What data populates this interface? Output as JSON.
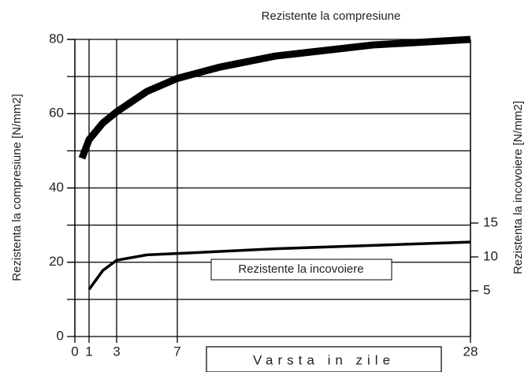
{
  "chart_data": {
    "type": "line",
    "xlabel": "Varsta in zile",
    "ylabel": "Rezistenta la compresiune [N/mm2]",
    "y2label": "Rezistenta la incovoiere [N/mm2]",
    "xticks": [
      0,
      1,
      3,
      7,
      28
    ],
    "ylim": [
      0,
      80
    ],
    "yticks": [
      0,
      20,
      40,
      60,
      80
    ],
    "ygrid": [
      10,
      20,
      30,
      40,
      50,
      60,
      70,
      80
    ],
    "y2lim": [
      -1.75,
      42.1
    ],
    "y2ticks": [
      5,
      10,
      15
    ],
    "series": [
      {
        "name": "Rezistente la compresiune",
        "color": "#000000",
        "axis": "y",
        "x": [
          0.5,
          1,
          2,
          3,
          5,
          7,
          10,
          14,
          21,
          28
        ],
        "values": [
          48,
          53,
          57.5,
          60.5,
          66,
          69.5,
          72.5,
          75.5,
          78.5,
          80
        ]
      },
      {
        "name": "Rezistente la incovoiere",
        "color": "#000000",
        "axis": "y2",
        "x": [
          1,
          2,
          3,
          5,
          7,
          14,
          21,
          28
        ],
        "values": [
          5.2,
          8,
          9.5,
          10.3,
          10.5,
          11.2,
          11.7,
          12.2
        ]
      }
    ]
  }
}
